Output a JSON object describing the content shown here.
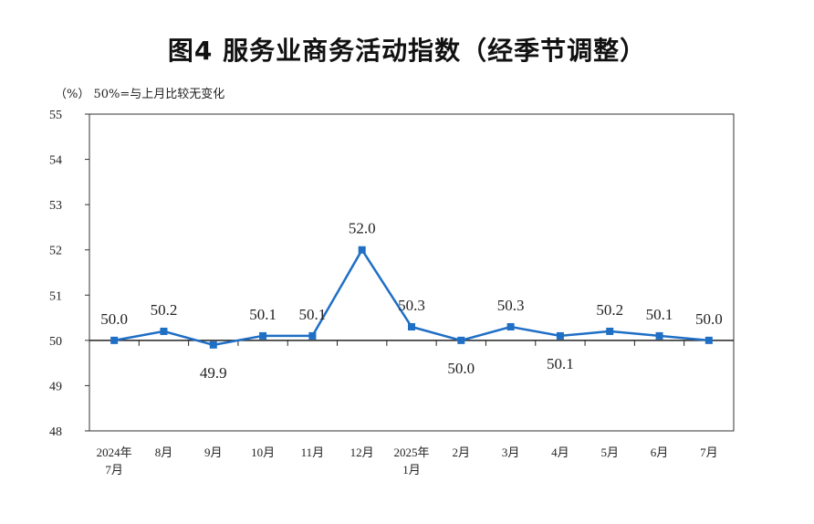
{
  "chart_data": {
    "type": "line",
    "title": "图4  服务业商务活动指数（经季节调整）",
    "unit_note": "（%）  50%=与上月比较无变化",
    "categories": [
      [
        "2024年",
        "7月"
      ],
      [
        "8月"
      ],
      [
        "9月"
      ],
      [
        "10月"
      ],
      [
        "11月"
      ],
      [
        "12月"
      ],
      [
        "2025年",
        "1月"
      ],
      [
        "2月"
      ],
      [
        "3月"
      ],
      [
        "4月"
      ],
      [
        "5月"
      ],
      [
        "6月"
      ],
      [
        "7月"
      ]
    ],
    "series": [
      {
        "values": [
          50.0,
          50.2,
          49.9,
          50.1,
          50.1,
          52.0,
          50.3,
          50.0,
          50.3,
          50.1,
          50.2,
          50.1,
          50.0
        ]
      }
    ],
    "data_labels": [
      "50.0",
      "50.2",
      "49.9",
      "50.1",
      "50.1",
      "52.0",
      "50.3",
      "50.0",
      "50.3",
      "50.1",
      "50.2",
      "50.1",
      "50.0"
    ],
    "yticks": [
      "48",
      "49",
      "50",
      "51",
      "52",
      "53",
      "54",
      "55"
    ],
    "ylim": [
      48,
      55
    ],
    "reference_line": 50,
    "line_color": "#1f6fc5",
    "grid": false
  }
}
